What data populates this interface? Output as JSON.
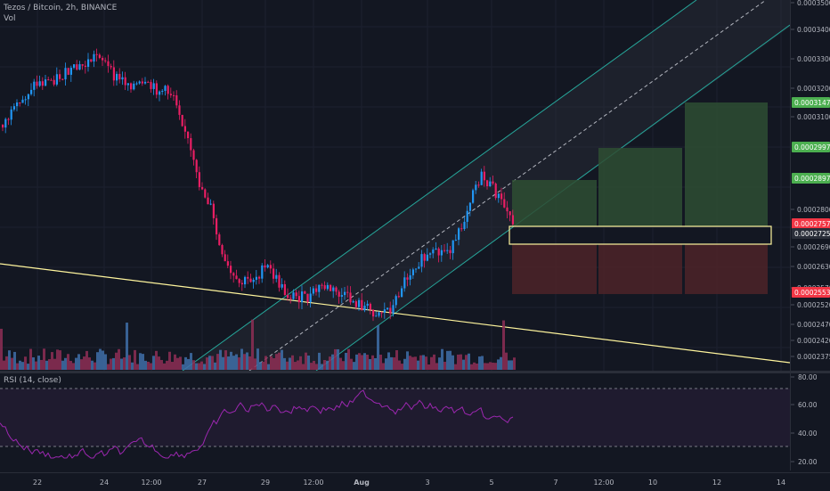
{
  "header": {
    "symbol_title": "Tezos / Bitcoin, 2h, BINANCE",
    "volume_label": "Vol"
  },
  "rsi": {
    "label": "RSI (14, close)",
    "levels": [
      "80.00",
      "60.00",
      "40.00",
      "20.00"
    ]
  },
  "price_axis": {
    "ticks": [
      "0.0003500",
      "0.0003400",
      "0.0003300",
      "0.0003200",
      "0.0003100",
      "0.0002800",
      "0.0002690",
      "0.0002630",
      "0.0002570",
      "0.0002520",
      "0.0002470",
      "0.0002420",
      "0.0002375"
    ],
    "badges": [
      {
        "text": "0.0003147",
        "color": "#4caf50"
      },
      {
        "text": "0.0002997",
        "color": "#4caf50"
      },
      {
        "text": "0.0002897",
        "color": "#4caf50"
      },
      {
        "text": "0.0002757",
        "color": "#f23645"
      },
      {
        "text": "0.0002725",
        "color": "#2a2e39"
      },
      {
        "text": "0.0002553",
        "color": "#f23645"
      }
    ]
  },
  "time_axis": {
    "ticks": [
      "22",
      "24",
      "12:00",
      "27",
      "29",
      "12:00",
      "Aug",
      "3",
      "5",
      "7",
      "12:00",
      "10",
      "12",
      "14"
    ]
  },
  "colors": {
    "up": "#26a69a",
    "down": "#ef5350",
    "candle_up": "#2196f3",
    "candle_down": "#e91e63",
    "channel": "#26a69a",
    "trendline": "#fff59d",
    "target_fill": "#2e4d33",
    "stop_fill": "#4d2328",
    "rsi_line": "#9c27b0"
  }
}
